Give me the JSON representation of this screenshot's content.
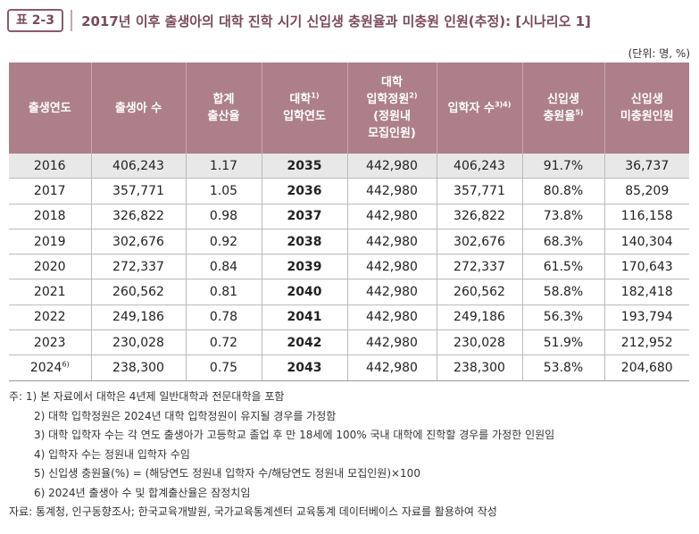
{
  "table_label": "표 2-3",
  "title": "2017년 이후 출생아의 대학 진학 시기 신입생 충원율과 미충원 인원(추정): [시나리오 1]",
  "unit": "(단위: 명, %)",
  "headers": {
    "h0": "출생연도",
    "h1": "출생아 수",
    "h2a": "합계",
    "h2b": "출산율",
    "h3a": "대학",
    "h3sup": "1)",
    "h3b": "입학연도",
    "h4a": "대학",
    "h4b": "입학정원",
    "h4sup": "2)",
    "h4c": "(정원내",
    "h4d": "모집인원)",
    "h5a": "입학자 수",
    "h5sup": "3)4)",
    "h6a": "신입생",
    "h6b": "충원율",
    "h6sup": "5)",
    "h7a": "신입생",
    "h7b": "미충원인원"
  },
  "rows": [
    {
      "year": "2016",
      "sup": "",
      "births": "406,243",
      "tfr": "1.17",
      "entry": "2035",
      "quota": "442,980",
      "admitted": "406,243",
      "fill": "91.7%",
      "unfilled": "36,737"
    },
    {
      "year": "2017",
      "sup": "",
      "births": "357,771",
      "tfr": "1.05",
      "entry": "2036",
      "quota": "442,980",
      "admitted": "357,771",
      "fill": "80.8%",
      "unfilled": "85,209"
    },
    {
      "year": "2018",
      "sup": "",
      "births": "326,822",
      "tfr": "0.98",
      "entry": "2037",
      "quota": "442,980",
      "admitted": "326,822",
      "fill": "73.8%",
      "unfilled": "116,158"
    },
    {
      "year": "2019",
      "sup": "",
      "births": "302,676",
      "tfr": "0.92",
      "entry": "2038",
      "quota": "442,980",
      "admitted": "302,676",
      "fill": "68.3%",
      "unfilled": "140,304"
    },
    {
      "year": "2020",
      "sup": "",
      "births": "272,337",
      "tfr": "0.84",
      "entry": "2039",
      "quota": "442,980",
      "admitted": "272,337",
      "fill": "61.5%",
      "unfilled": "170,643"
    },
    {
      "year": "2021",
      "sup": "",
      "births": "260,562",
      "tfr": "0.81",
      "entry": "2040",
      "quota": "442,980",
      "admitted": "260,562",
      "fill": "58.8%",
      "unfilled": "182,418"
    },
    {
      "year": "2022",
      "sup": "",
      "births": "249,186",
      "tfr": "0.78",
      "entry": "2041",
      "quota": "442,980",
      "admitted": "249,186",
      "fill": "56.3%",
      "unfilled": "193,794"
    },
    {
      "year": "2023",
      "sup": "",
      "births": "230,028",
      "tfr": "0.72",
      "entry": "2042",
      "quota": "442,980",
      "admitted": "230,028",
      "fill": "51.9%",
      "unfilled": "212,952"
    },
    {
      "year": "2024",
      "sup": "6)",
      "births": "238,300",
      "tfr": "0.75",
      "entry": "2043",
      "quota": "442,980",
      "admitted": "238,300",
      "fill": "53.8%",
      "unfilled": "204,680"
    }
  ],
  "notes": [
    "주: 1) 본 자료에서 대학은 4년제 일반대학과 전문대학을 포함",
    "2) 대학 입학정원은 2024년 대학 입학정원이 유지될 경우를 가정함",
    "3) 대학 입학자 수는 각 연도 출생아가 고등학교 졸업 후 만 18세에 100% 국내 대학에 진학할 경우를 가정한 인원임",
    "4) 입학자 수는 정원내 입학자 수임",
    "5) 신입생 충원율(%) = (해당연도 정원내 입학자 수/해당연도 정원내 모집인원)×100",
    "6) 2024년 출생아 수 및 합계출산율은 잠정치임"
  ],
  "source": "자료: 통계청, 인구동향조사; 한국교육개발원, 국가교육통계센터 교육통계 데이터베이스 자료를 활용하여 작성"
}
